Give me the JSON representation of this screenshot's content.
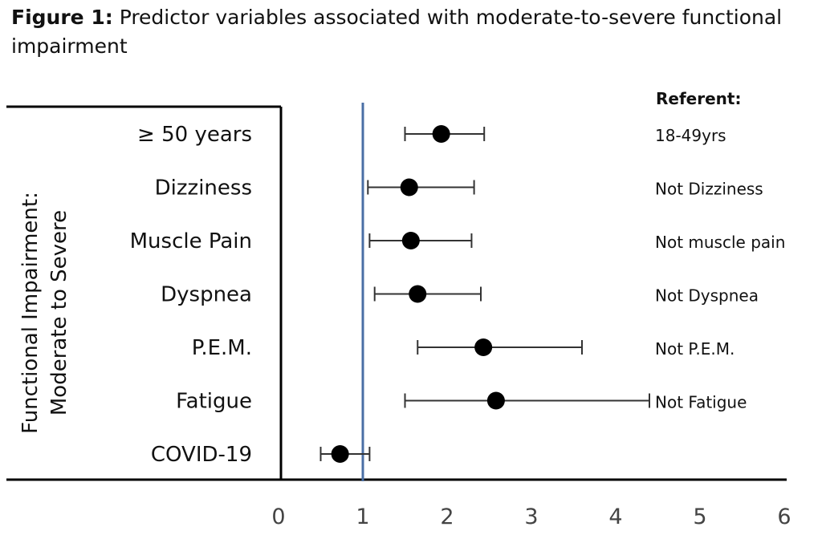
{
  "figure": {
    "label": "Figure 1:",
    "caption": "Predictor variables associated with moderate-to-severe functional impairment"
  },
  "chart_data": {
    "type": "forest",
    "ylabel_lines": [
      "Functional Impairment:",
      "Moderate to Severe"
    ],
    "referent_header": "Referent:",
    "xlim": [
      0,
      6
    ],
    "xticks": [
      0,
      1,
      2,
      3,
      4,
      5,
      6
    ],
    "reference_line": 1,
    "rows": [
      {
        "label": "≥ 50 years",
        "estimate": 1.93,
        "lower": 1.5,
        "upper": 2.44,
        "referent": "18-49yrs"
      },
      {
        "label": "Dizziness",
        "estimate": 1.55,
        "lower": 1.06,
        "upper": 2.32,
        "referent": "Not Dizziness"
      },
      {
        "label": "Muscle Pain",
        "estimate": 1.57,
        "lower": 1.08,
        "upper": 2.29,
        "referent": "Not muscle pain"
      },
      {
        "label": "Dyspnea",
        "estimate": 1.65,
        "lower": 1.14,
        "upper": 2.4,
        "referent": "Not Dyspnea"
      },
      {
        "label": "P.E.M.",
        "estimate": 2.43,
        "lower": 1.65,
        "upper": 3.6,
        "referent": "Not P.E.M."
      },
      {
        "label": "Fatigue",
        "estimate": 2.58,
        "lower": 1.5,
        "upper": 4.4,
        "referent": "Not Fatigue"
      },
      {
        "label": "COVID-19",
        "estimate": 0.73,
        "lower": 0.5,
        "upper": 1.08,
        "referent": ""
      }
    ],
    "colors": {
      "reference_line": "#4a6fa5",
      "point": "#000000",
      "ci": "#333333"
    }
  }
}
